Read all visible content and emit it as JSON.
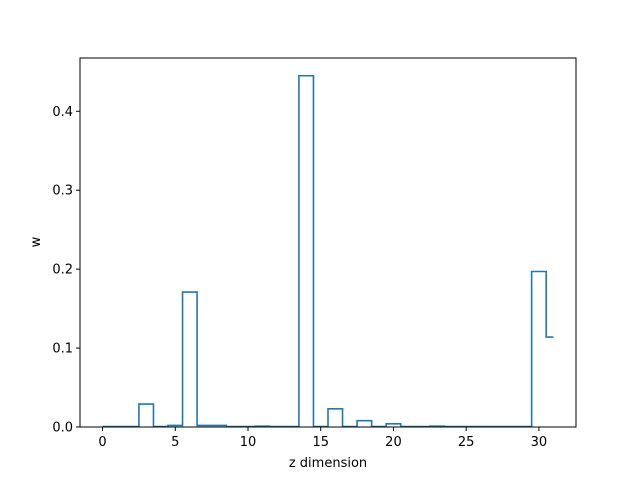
{
  "chart_data": {
    "type": "line",
    "drawstyle": "steps-mid",
    "title": "",
    "xlabel": "z dimension",
    "ylabel": "w",
    "xlim": [
      -1.55,
      32.55
    ],
    "ylim": [
      0,
      0.4675
    ],
    "xticks": [
      0,
      5,
      10,
      15,
      20,
      25,
      30
    ],
    "yticks": [
      0.0,
      0.1,
      0.2,
      0.3,
      0.4
    ],
    "ytick_labels": [
      "0.0",
      "0.1",
      "0.2",
      "0.3",
      "0.4"
    ],
    "grid": false,
    "line_color": "#1f77b4",
    "x": [
      0,
      1,
      2,
      3,
      4,
      5,
      6,
      7,
      8,
      9,
      10,
      11,
      12,
      13,
      14,
      15,
      16,
      17,
      18,
      19,
      20,
      21,
      22,
      23,
      24,
      25,
      26,
      27,
      28,
      29,
      30,
      31
    ],
    "values": [
      0.0005,
      0.0005,
      0.0005,
      0.029,
      0.0005,
      0.002,
      0.171,
      0.002,
      0.002,
      0.0005,
      0.0005,
      0.001,
      0.0005,
      0.0005,
      0.445,
      0.0005,
      0.023,
      0.0005,
      0.008,
      0.0005,
      0.004,
      0.0005,
      0.0005,
      0.001,
      0.0005,
      0.0005,
      0.0005,
      0.0005,
      0.0005,
      0.0005,
      0.197,
      0.114
    ]
  }
}
